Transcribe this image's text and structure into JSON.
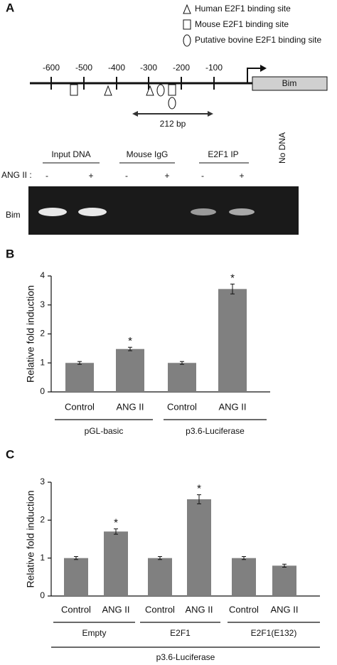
{
  "panel_a": {
    "label": "A",
    "legend": [
      "Human E2F1 binding site",
      "Mouse E2F1 binding site",
      "Putative bovine E2F1 binding site"
    ],
    "positions": [
      -600,
      -500,
      -400,
      -300,
      -200,
      -100
    ],
    "gene": "Bim",
    "distance": "212 bp",
    "gel": {
      "lanes": [
        "Input DNA",
        "Mouse IgG",
        "E2F1 IP",
        "No DNA"
      ],
      "treatment_label": "ANG II :",
      "treatment": [
        "-",
        "+",
        "-",
        "+",
        "-",
        "+"
      ],
      "row_label": "Bim"
    }
  },
  "chart_data": [
    {
      "type": "bar",
      "panel": "B",
      "y_label": "Relative fold induction",
      "color": "#808080",
      "ylim": [
        0,
        4
      ],
      "yticks": [
        0,
        1,
        2,
        3,
        4
      ],
      "groups": [
        {
          "name": "pGL-basic",
          "categories": [
            "Control",
            "ANG II"
          ],
          "values": [
            1.0,
            1.48
          ],
          "errors": [
            0.05,
            0.06
          ],
          "significance": [
            null,
            "*"
          ]
        },
        {
          "name": "p3.6-Luciferase",
          "categories": [
            "Control",
            "ANG II"
          ],
          "values": [
            1.0,
            3.55
          ],
          "errors": [
            0.05,
            0.17
          ],
          "significance": [
            null,
            "*"
          ]
        }
      ]
    },
    {
      "type": "bar",
      "panel": "C",
      "y_label": "Relative fold induction",
      "color": "#808080",
      "ylim": [
        0,
        3
      ],
      "yticks": [
        0,
        1,
        2,
        3
      ],
      "group_label": "p3.6-Luciferase",
      "groups": [
        {
          "name": "Empty",
          "categories": [
            "Control",
            "ANG II"
          ],
          "values": [
            1.0,
            1.7
          ],
          "errors": [
            0.04,
            0.07
          ],
          "significance": [
            null,
            "*"
          ]
        },
        {
          "name": "E2F1",
          "categories": [
            "Control",
            "ANG II"
          ],
          "values": [
            1.0,
            2.55
          ],
          "errors": [
            0.04,
            0.12
          ],
          "significance": [
            null,
            "*"
          ]
        },
        {
          "name": "E2F1(E132)",
          "categories": [
            "Control",
            "ANG II"
          ],
          "values": [
            1.0,
            0.8
          ],
          "errors": [
            0.04,
            0.04
          ],
          "significance": [
            null,
            null
          ]
        }
      ]
    }
  ]
}
